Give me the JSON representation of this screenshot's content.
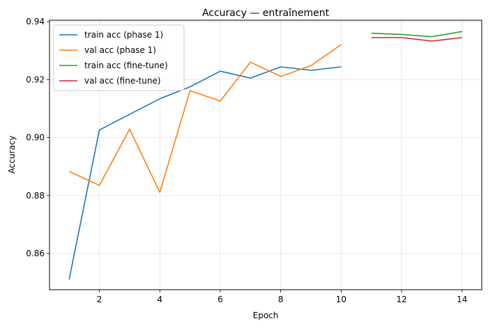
{
  "chart_data": {
    "type": "line",
    "title": "Accuracy — entraînement",
    "xlabel": "Epoch",
    "ylabel": "Accuracy",
    "xlim": [
      0.35,
      14.65
    ],
    "ylim": [
      0.8475,
      0.9405
    ],
    "xticks": [
      2,
      4,
      6,
      8,
      10,
      12,
      14
    ],
    "yticks": [
      0.86,
      0.88,
      0.9,
      0.92,
      0.94
    ],
    "ytick_labels": [
      "0.86",
      "0.88",
      "0.90",
      "0.92",
      "0.94"
    ],
    "grid": true,
    "legend_position": "top-left",
    "series": [
      {
        "name": "train acc (phase 1)",
        "color": "#1f77b4",
        "x": [
          1,
          2,
          3,
          4,
          5,
          6,
          7,
          8,
          9,
          10
        ],
        "y": [
          0.851,
          0.9026,
          0.908,
          0.9134,
          0.9175,
          0.9229,
          0.9205,
          0.9244,
          0.9232,
          0.9244
        ]
      },
      {
        "name": "val acc (phase 1)",
        "color": "#ff7f0e",
        "x": [
          1,
          2,
          3,
          4,
          5,
          6,
          7,
          8,
          9,
          10
        ],
        "y": [
          0.8883,
          0.8835,
          0.9029,
          0.8811,
          0.9162,
          0.9126,
          0.926,
          0.9211,
          0.9248,
          0.9321
        ]
      },
      {
        "name": "train acc (fine-tune)",
        "color": "#2ca02c",
        "x": [
          11,
          12,
          13,
          14
        ],
        "y": [
          0.936,
          0.9356,
          0.9348,
          0.9366
        ]
      },
      {
        "name": "val acc (fine-tune)",
        "color": "#d62728",
        "x": [
          11,
          12,
          13,
          14
        ],
        "y": [
          0.9345,
          0.9345,
          0.9333,
          0.9345
        ]
      }
    ]
  }
}
